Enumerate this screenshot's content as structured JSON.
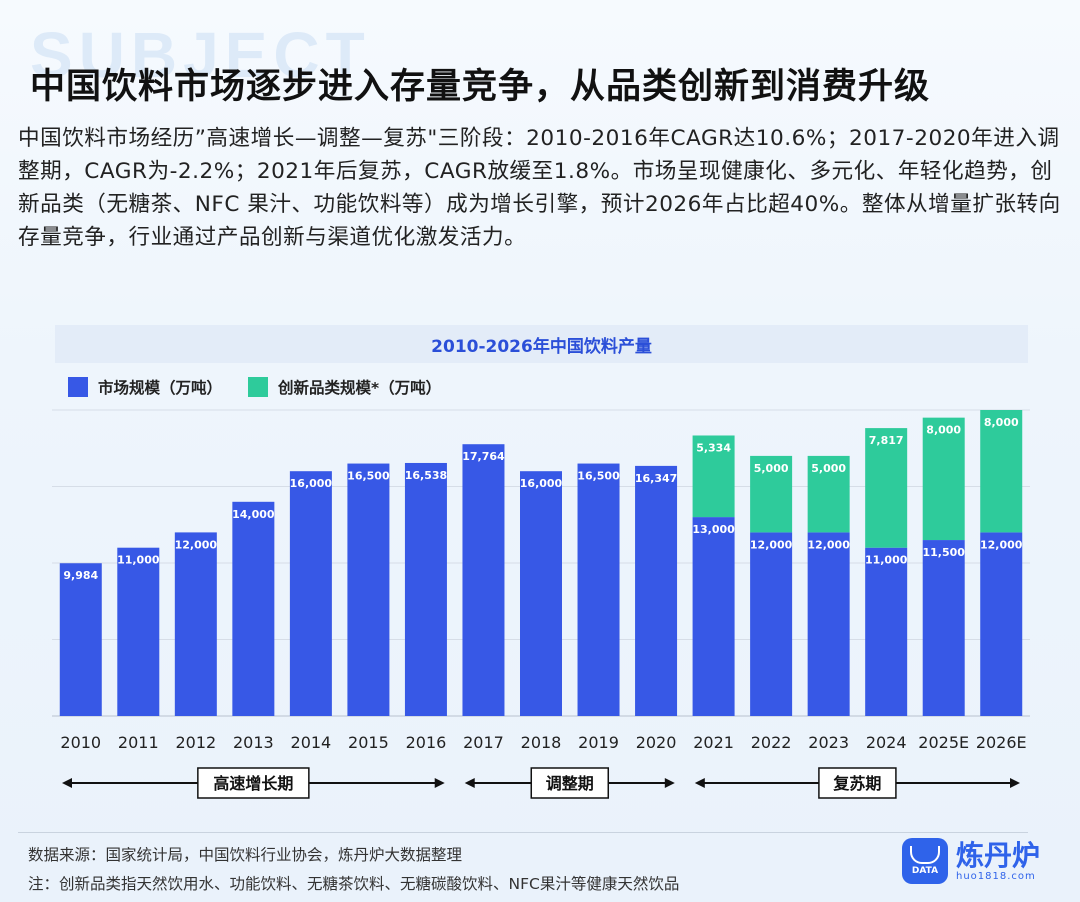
{
  "watermark_word": "SUBJECT",
  "title": "中国饮料市场逐步进入存量竞争，从品类创新到消费升级",
  "intro": "中国饮料市场经历”高速增长—调整—复苏\"三阶段：2010-2016年CAGR达10.6%；2017-2020年进入调整期，CAGR为-2.2%；2021年后复苏，CAGR放缓至1.8%。市场呈现健康化、多元化、年轻化趋势，创新品类（无糖茶、NFC 果汁、功能饮料等）成为增长引擎，预计2026年占比超40%。整体从增量扩张转向存量竞争，行业通过产品创新与渠道优化激发活力。",
  "chart_data": {
    "type": "bar",
    "stacked": true,
    "title": "2010-2026年中国饮料产量",
    "categories": [
      "2010",
      "2011",
      "2012",
      "2013",
      "2014",
      "2015",
      "2016",
      "2017",
      "2018",
      "2019",
      "2020",
      "2021",
      "2022",
      "2023",
      "2024",
      "2025E",
      "2026E"
    ],
    "series": [
      {
        "name": "市场规模（万吨）",
        "color": "#3758e6",
        "values": [
          9984,
          11000,
          12000,
          14000,
          16000,
          16500,
          16538,
          17764,
          16000,
          16500,
          16347,
          13000,
          12000,
          12000,
          11000,
          11500,
          12000
        ],
        "labels": [
          "9,984",
          "11,000",
          "12,000",
          "14,000",
          "16,000",
          "16,500",
          "16,538",
          "17,764",
          "16,000",
          "16,500",
          "16,347",
          "13,000",
          "12,000",
          "12,000",
          "11,000",
          "11,500",
          "12,000"
        ]
      },
      {
        "name": "创新品类规模*（万吨）",
        "color": "#2ecb9b",
        "values": [
          null,
          null,
          null,
          null,
          null,
          null,
          null,
          null,
          null,
          null,
          null,
          5334,
          5000,
          5000,
          7817,
          8000,
          8000
        ],
        "labels": [
          null,
          null,
          null,
          null,
          null,
          null,
          null,
          null,
          null,
          null,
          null,
          "5,334",
          "5,000",
          "5,000",
          "7,817",
          "8,000",
          "8,000"
        ]
      }
    ],
    "ylim": [
      0,
      20000
    ],
    "grid": true,
    "legend": "top-left",
    "phases": [
      {
        "label": "高速增长期",
        "from": "2010",
        "to": "2016"
      },
      {
        "label": "调整期",
        "from": "2017",
        "to": "2020"
      },
      {
        "label": "复苏期",
        "from": "2021",
        "to": "2026E"
      }
    ]
  },
  "footer": {
    "source": "数据来源：国家统计局，中国饮料行业协会，炼丹炉大数据整理",
    "note": "注：创新品类指天然饮用水、功能饮料、无糖茶饮料、无糖碳酸饮料、NFC果汁等健康天然饮品"
  },
  "logo": {
    "name": "炼丹炉",
    "url": "huo1818.com",
    "badge_text": "DATA"
  }
}
